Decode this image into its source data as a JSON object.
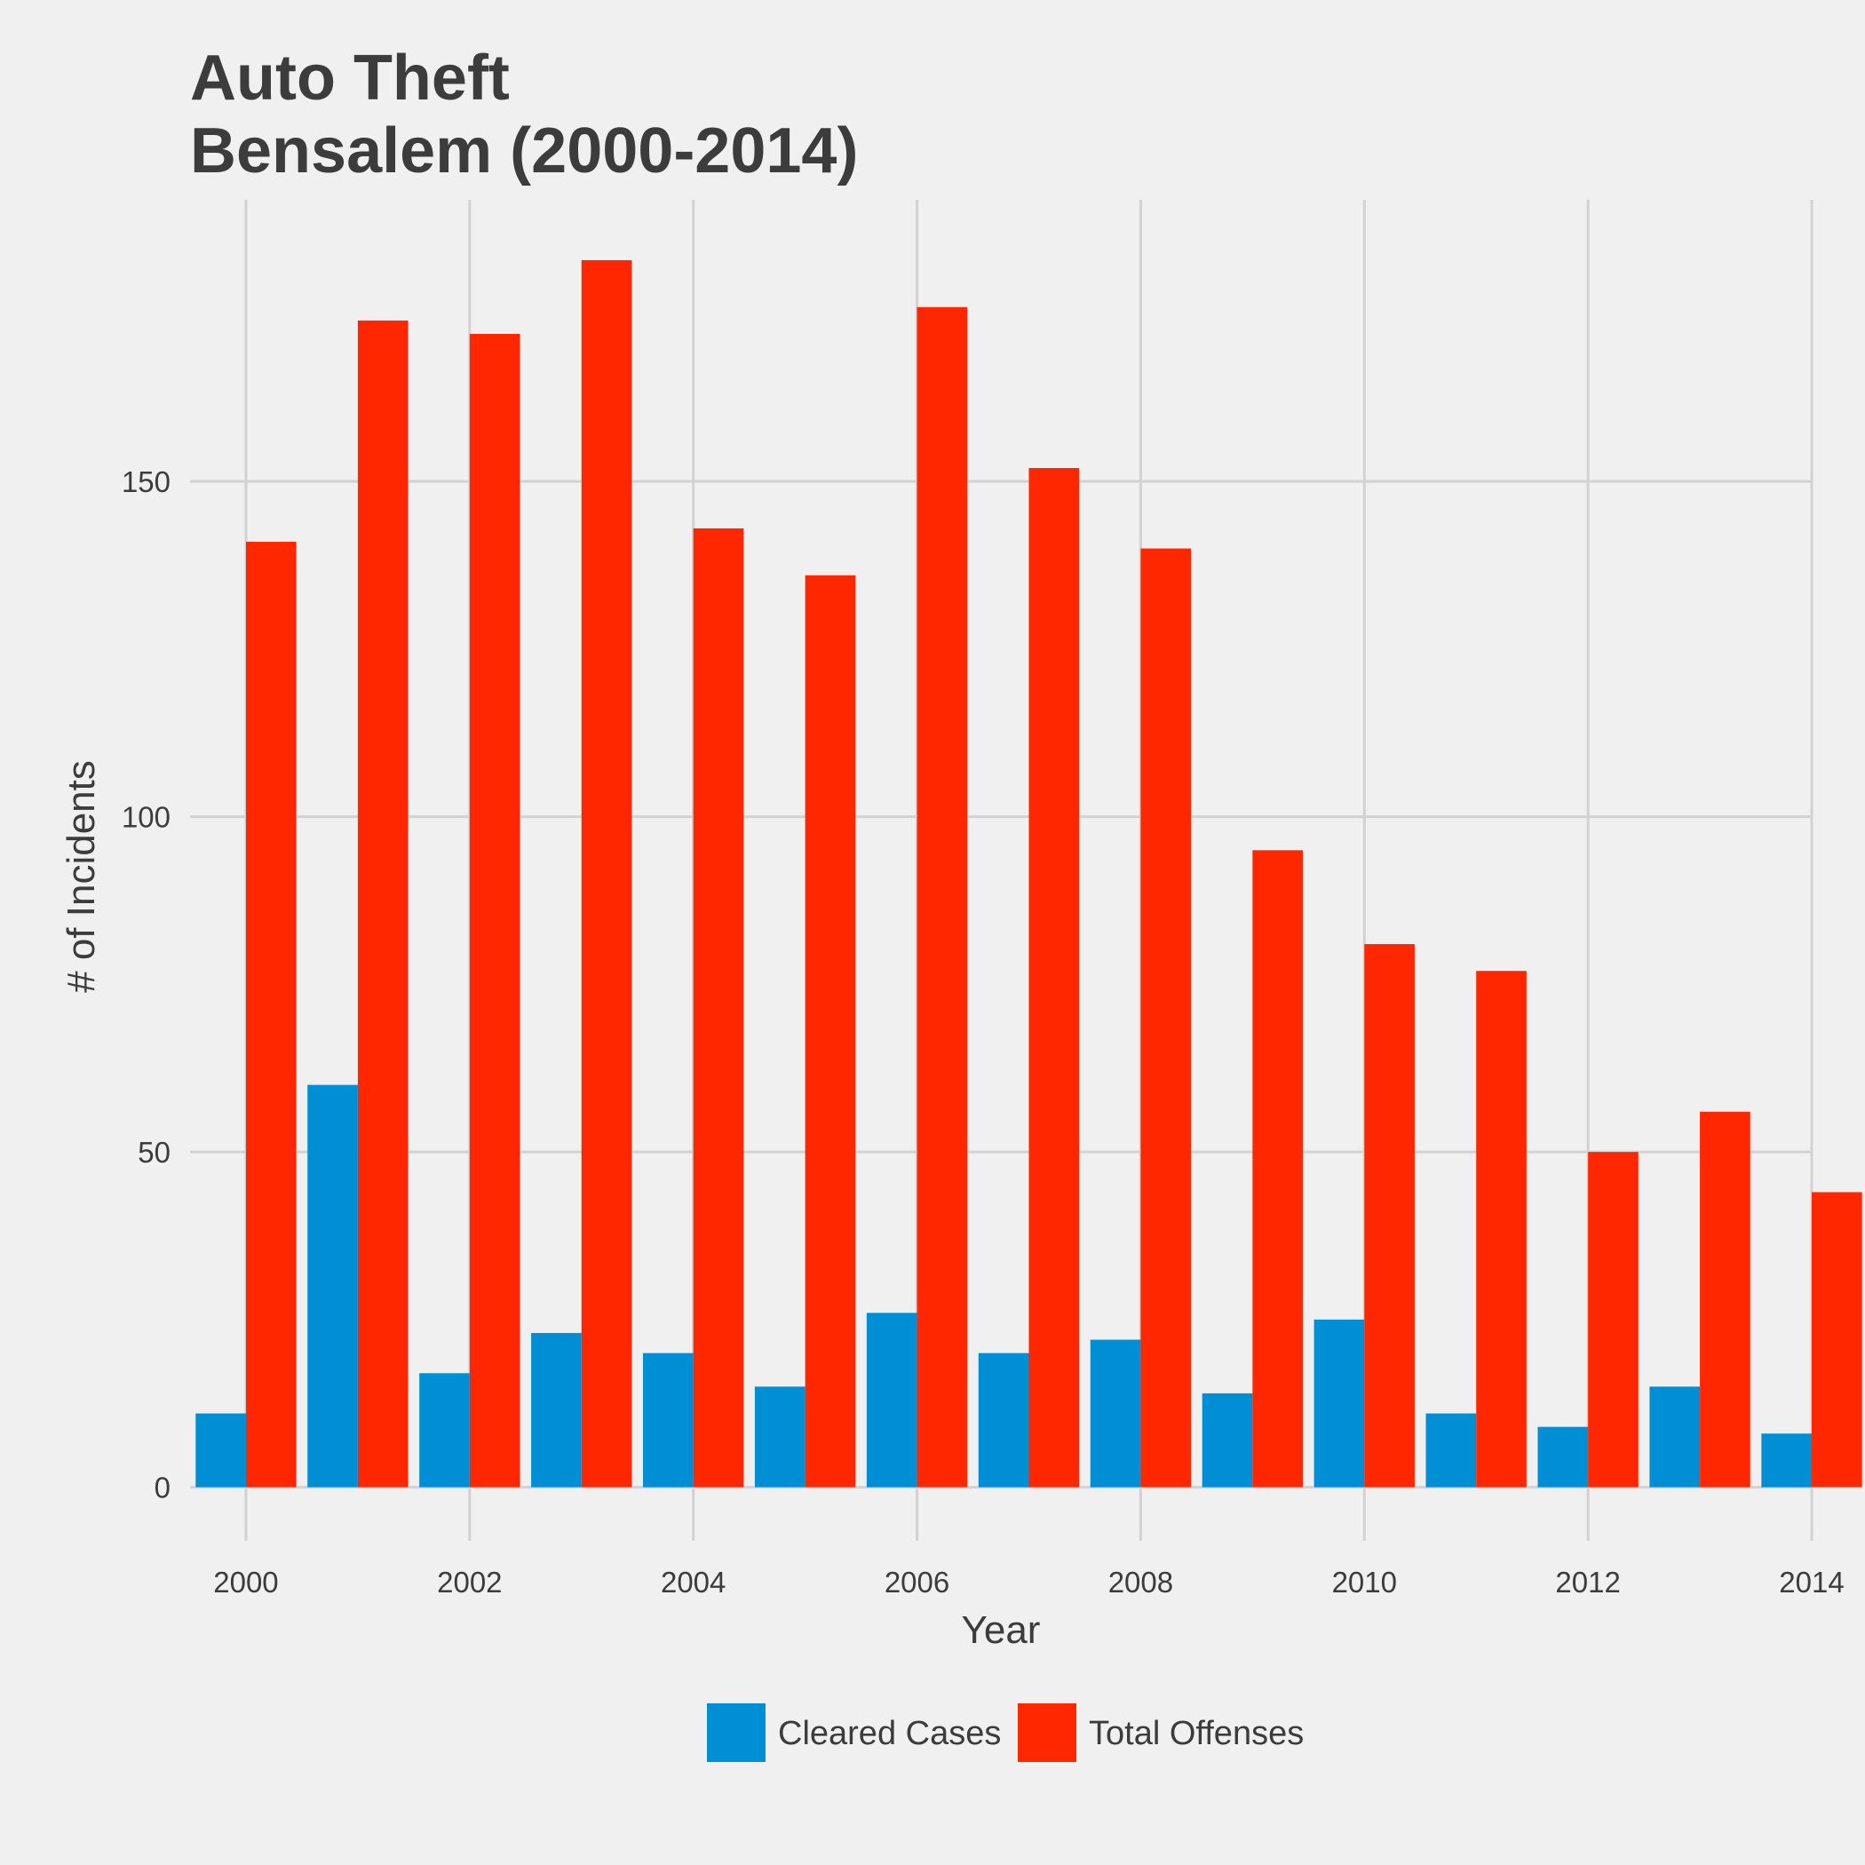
{
  "chart_data": {
    "type": "bar",
    "title": "Auto Theft",
    "subtitle": "Bensalem (2000-2014)",
    "xlabel": "Year",
    "ylabel": "# of Incidents",
    "categories": [
      "2000",
      "2001",
      "2002",
      "2003",
      "2004",
      "2005",
      "2006",
      "2007",
      "2008",
      "2009",
      "2010",
      "2011",
      "2012",
      "2013",
      "2014"
    ],
    "x_tick_labels": [
      "2000",
      "2002",
      "2004",
      "2006",
      "2008",
      "2010",
      "2012",
      "2014"
    ],
    "y_tick_labels": [
      "0",
      "50",
      "100",
      "150"
    ],
    "y_ticks": [
      0,
      50,
      100,
      150
    ],
    "ylim": [
      -8,
      192
    ],
    "grid": true,
    "legend_position": "bottom",
    "series": [
      {
        "name": "Cleared Cases",
        "color": "#008fd5",
        "values": [
          11,
          60,
          17,
          23,
          20,
          15,
          26,
          20,
          22,
          14,
          25,
          11,
          9,
          15,
          8
        ]
      },
      {
        "name": "Total Offenses",
        "color": "#ff2700",
        "values": [
          141,
          174,
          172,
          183,
          143,
          136,
          176,
          152,
          140,
          95,
          81,
          77,
          50,
          56,
          44
        ]
      }
    ]
  }
}
